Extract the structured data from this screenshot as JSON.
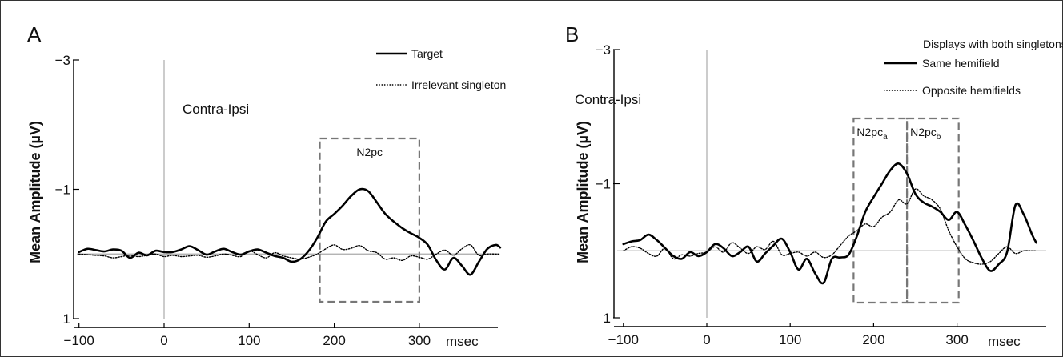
{
  "chart_data": [
    {
      "type": "line",
      "panel_label": "A",
      "ylabel": "Mean Amplitude (µV)",
      "x_unit_label": "msec",
      "annotation": "Contra-Ipsi",
      "xlim": [
        -110,
        395
      ],
      "ylim": [
        -3,
        1
      ],
      "y_inverted": true,
      "x_ticks": [
        -100,
        0,
        100,
        200,
        300
      ],
      "y_ticks": [
        -3,
        -1,
        1
      ],
      "x_tick_labels": [
        "−100",
        "0",
        "100",
        "200",
        "300"
      ],
      "y_tick_labels": [
        "−3",
        "−1",
        "1"
      ],
      "legend_title": "",
      "legend": [
        {
          "label": "Target",
          "style": "solid"
        },
        {
          "label": "Irrelevant singleton",
          "style": "dotted"
        }
      ],
      "windows": [
        {
          "label": "N2pc",
          "sub": "",
          "x_start": 183,
          "x_end": 300
        }
      ],
      "series": [
        {
          "name": "Target",
          "style": "solid",
          "x": [
            -100,
            -90,
            -80,
            -70,
            -60,
            -50,
            -40,
            -30,
            -20,
            -10,
            0,
            10,
            20,
            30,
            40,
            50,
            60,
            70,
            80,
            90,
            100,
            110,
            120,
            130,
            140,
            150,
            160,
            170,
            180,
            190,
            200,
            210,
            220,
            230,
            240,
            250,
            260,
            270,
            280,
            290,
            300,
            310,
            320,
            330,
            340,
            350,
            360,
            370,
            380,
            390,
            395
          ],
          "y": [
            -0.03,
            -0.08,
            -0.06,
            -0.04,
            -0.07,
            -0.05,
            0.06,
            -0.02,
            0.02,
            -0.05,
            -0.03,
            -0.03,
            -0.07,
            -0.12,
            -0.06,
            0.01,
            -0.04,
            -0.08,
            -0.03,
            0.01,
            -0.04,
            -0.07,
            -0.02,
            0.03,
            0.06,
            0.12,
            0.08,
            -0.05,
            -0.25,
            -0.5,
            -0.62,
            -0.75,
            -0.9,
            -1.0,
            -0.97,
            -0.8,
            -0.62,
            -0.5,
            -0.4,
            -0.32,
            -0.25,
            -0.14,
            0.1,
            0.24,
            0.06,
            0.18,
            0.32,
            0.12,
            -0.08,
            -0.14,
            -0.1
          ]
        },
        {
          "name": "Irrelevant singleton",
          "style": "dotted",
          "x": [
            -100,
            -90,
            -80,
            -70,
            -60,
            -50,
            -40,
            -30,
            -20,
            -10,
            0,
            10,
            20,
            30,
            40,
            50,
            60,
            70,
            80,
            90,
            100,
            110,
            120,
            130,
            140,
            150,
            160,
            170,
            180,
            190,
            200,
            210,
            220,
            230,
            240,
            250,
            260,
            270,
            280,
            290,
            300,
            310,
            320,
            330,
            340,
            350,
            360,
            370,
            380,
            390,
            395
          ],
          "y": [
            0.0,
            0.01,
            0.02,
            0.03,
            0.06,
            0.04,
            0.02,
            0.04,
            0.02,
            0.0,
            0.04,
            0.02,
            0.04,
            0.03,
            0.02,
            0.05,
            0.03,
            0.0,
            0.02,
            0.04,
            -0.05,
            0.01,
            0.06,
            -0.02,
            0.03,
            0.06,
            0.08,
            0.05,
            0.0,
            -0.08,
            -0.14,
            -0.07,
            -0.09,
            -0.13,
            -0.05,
            -0.02,
            0.08,
            0.06,
            0.1,
            0.03,
            0.05,
            0.08,
            0.0,
            -0.06,
            0.02,
            -0.08,
            -0.14,
            0.02,
            0.0,
            0.0,
            0.0
          ]
        }
      ]
    },
    {
      "type": "line",
      "panel_label": "B",
      "ylabel": "Mean Amplitude (µV)",
      "x_unit_label": "msec",
      "annotation": "Contra-Ipsi",
      "xlim": [
        -110,
        395
      ],
      "ylim": [
        -3,
        1
      ],
      "y_inverted": true,
      "x_ticks": [
        -100,
        0,
        100,
        200,
        300
      ],
      "y_ticks": [
        -3,
        -1,
        1
      ],
      "x_tick_labels": [
        "−100",
        "0",
        "100",
        "200",
        "300"
      ],
      "y_tick_labels": [
        "−3",
        "−1",
        "1"
      ],
      "legend_title": "Displays with both singletons",
      "legend": [
        {
          "label": "Same hemifield",
          "style": "solid"
        },
        {
          "label": "Opposite hemifields",
          "style": "dotted"
        }
      ],
      "windows": [
        {
          "label": "N2pc",
          "sub": "a",
          "x_start": 176,
          "x_end": 240
        },
        {
          "label": "N2pc",
          "sub": "b",
          "x_start": 240,
          "x_end": 302
        }
      ],
      "series": [
        {
          "name": "Same hemifield",
          "style": "solid",
          "x": [
            -100,
            -90,
            -80,
            -70,
            -60,
            -50,
            -40,
            -30,
            -20,
            -10,
            0,
            10,
            20,
            30,
            40,
            50,
            60,
            70,
            80,
            90,
            100,
            110,
            120,
            130,
            140,
            150,
            160,
            170,
            180,
            190,
            200,
            210,
            220,
            230,
            240,
            250,
            260,
            270,
            280,
            290,
            300,
            310,
            320,
            330,
            340,
            350,
            360,
            370,
            380,
            390,
            395
          ],
          "y": [
            -0.1,
            -0.14,
            -0.16,
            -0.24,
            -0.16,
            -0.04,
            0.08,
            0.12,
            0.02,
            0.08,
            0.02,
            -0.1,
            -0.04,
            0.08,
            0.02,
            -0.06,
            0.16,
            0.04,
            -0.08,
            -0.18,
            0.02,
            0.28,
            0.12,
            0.34,
            0.48,
            0.12,
            0.1,
            0.06,
            -0.22,
            -0.58,
            -0.8,
            -1.0,
            -1.2,
            -1.3,
            -1.15,
            -0.85,
            -0.72,
            -0.66,
            -0.58,
            -0.46,
            -0.58,
            -0.38,
            -0.14,
            0.12,
            0.3,
            0.2,
            0.02,
            -0.68,
            -0.54,
            -0.24,
            -0.12
          ]
        },
        {
          "name": "Opposite hemifields",
          "style": "dotted",
          "x": [
            -100,
            -90,
            -80,
            -70,
            -60,
            -50,
            -40,
            -30,
            -20,
            -10,
            0,
            10,
            20,
            30,
            40,
            50,
            60,
            70,
            80,
            90,
            100,
            110,
            120,
            130,
            140,
            150,
            160,
            170,
            180,
            190,
            200,
            210,
            220,
            230,
            240,
            250,
            260,
            270,
            280,
            290,
            300,
            310,
            320,
            330,
            340,
            350,
            360,
            370,
            380,
            390,
            395
          ],
          "y": [
            0.0,
            -0.06,
            -0.04,
            0.04,
            0.08,
            -0.04,
            0.12,
            0.06,
            0.08,
            0.04,
            0.02,
            -0.06,
            0.02,
            -0.12,
            -0.04,
            0.04,
            -0.06,
            -0.02,
            -0.14,
            0.06,
            0.04,
            0.02,
            0.08,
            0.02,
            0.1,
            0.06,
            -0.08,
            -0.22,
            -0.3,
            -0.4,
            -0.36,
            -0.5,
            -0.58,
            -0.76,
            -0.7,
            -0.92,
            -0.82,
            -0.76,
            -0.62,
            -0.3,
            -0.06,
            0.12,
            0.18,
            0.2,
            0.16,
            0.04,
            -0.06,
            0.04,
            0.0,
            0.0,
            0.0
          ]
        }
      ]
    }
  ]
}
